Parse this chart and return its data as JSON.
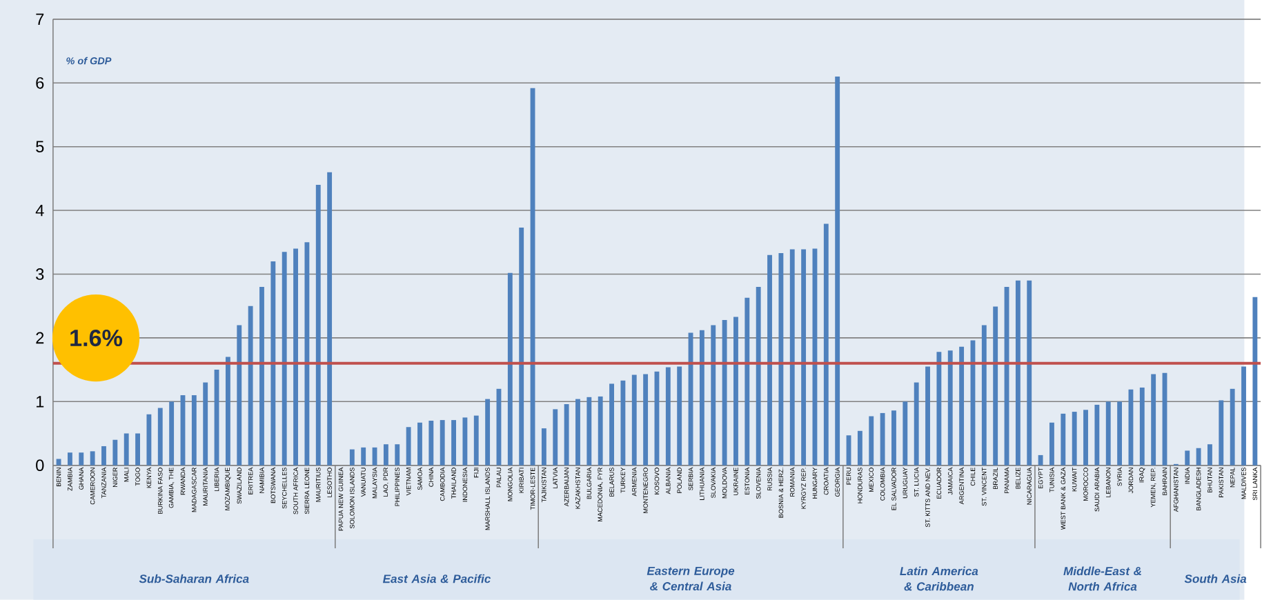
{
  "chart_data": {
    "type": "bar",
    "ylabel": "% of GDP",
    "categories": [
      "BENIN",
      "ZAMBIA",
      "GHANA",
      "CAMEROON",
      "TANZANIA",
      "NIGER",
      "MALI",
      "TOGO",
      "KENYA",
      "BURKINA FASO",
      "GAMBIA, THE",
      "RWANDA",
      "MADAGASCAR",
      "MAURITANIA",
      "LIBERIA",
      "MOZAMBIQUE",
      "SWAZILAND",
      "ERITREA",
      "NAMIBIA",
      "BOTSWANA",
      "SEYCHELLES",
      "SOUTH AFRICA",
      "SIERRA LEONE",
      "MAURITIUS",
      "LESOTHO",
      "PAPUA NEW GUINEA",
      "SOLOMON ISLANDS",
      "VANUATU",
      "MALAYSIA",
      "LAO, PDR",
      "PHILIPPINES",
      "VIETNAM",
      "SAMOA",
      "CHINA",
      "CAMBODIA",
      "THAILAND",
      "INDONESIA",
      "FIJI",
      "MARSHALL ISLANDS",
      "PALAU",
      "MONGOLIA",
      "KIRIBATI",
      "TIMOR-LESTE",
      "TAJIKISTAN",
      "LATVIA",
      "AZERBAIJAN",
      "KAZAKHSTAN",
      "BULGARIA",
      "MACEDONIA, FYR",
      "BELARUS",
      "TURKEY",
      "ARMENIA",
      "MONTENEGRO",
      "KOSOVO",
      "ALBANIA",
      "POLAND",
      "SERBIA",
      "LITHUANIA",
      "SLOVAKIA",
      "MOLDOVA",
      "UKRAINE",
      "ESTONIA",
      "SLOVENIA",
      "RUSSIA",
      "BOSNIA & HERZ.",
      "ROMANIA",
      "KYRGYZ REP.",
      "HUNGARY",
      "CROATIA",
      "GEORGIA",
      "PERU",
      "HONDURAS",
      "MEXICO",
      "COLOMBIA",
      "EL SALVADOR",
      "URUGUAY",
      "ST. LUCIA",
      "ST. KITTS AND NEV.",
      "ECUADOR",
      "JAMAICA",
      "ARGENTINA",
      "CHILE",
      "ST. VINCENT",
      "BRAZIL",
      "PANAMA",
      "BELIZE",
      "NICARAGUA",
      "EGYPT",
      "TUNISIA",
      "WEST BANK & GAZA",
      "KUWAIT",
      "MOROCCO",
      "SAUDI ARABIA",
      "LEBANON",
      "SYRIA",
      "JORDAN",
      "IRAQ",
      "YEMEN, REP.",
      "BAHRAIN",
      "AFGHANISTAN",
      "INDIA",
      "BANGLADESH",
      "BHUTAN",
      "PAKISTAN",
      "NEPAL",
      "MALDIVES",
      "SRI LANKA"
    ],
    "values": [
      0.1,
      0.2,
      0.2,
      0.22,
      0.3,
      0.4,
      0.5,
      0.5,
      0.8,
      0.9,
      1.0,
      1.1,
      1.1,
      1.3,
      1.5,
      1.7,
      2.2,
      2.5,
      2.8,
      3.2,
      3.35,
      3.4,
      3.5,
      4.4,
      4.6,
      null,
      0.25,
      0.28,
      0.28,
      0.33,
      0.33,
      0.6,
      0.67,
      0.7,
      0.71,
      0.71,
      0.75,
      0.78,
      1.04,
      1.2,
      3.02,
      3.73,
      5.92,
      0.58,
      0.88,
      0.96,
      1.04,
      1.07,
      1.08,
      1.28,
      1.33,
      1.42,
      1.43,
      1.47,
      1.54,
      1.55,
      2.08,
      2.12,
      2.2,
      2.28,
      2.33,
      2.63,
      2.8,
      3.3,
      3.33,
      3.39,
      3.39,
      3.4,
      3.79,
      6.1,
      0.47,
      0.54,
      0.77,
      0.82,
      0.86,
      1.0,
      1.3,
      1.55,
      1.78,
      1.8,
      1.86,
      1.96,
      2.2,
      2.49,
      2.8,
      2.9,
      2.9,
      0.16,
      0.67,
      0.81,
      0.84,
      0.87,
      0.95,
      1.0,
      1.0,
      1.19,
      1.22,
      1.43,
      1.45,
      0.02,
      0.23,
      0.27,
      0.33,
      1.02,
      1.2,
      1.55,
      2.64
    ],
    "color": "#4f81bd",
    "ylim": [
      0,
      7
    ],
    "yticks": [
      0,
      1,
      2,
      3,
      4,
      5,
      6,
      7
    ],
    "grid": "y",
    "ref_lines": [
      {
        "axis": "y",
        "value": 1.6,
        "label": "1.6%",
        "color": "#c0504d"
      }
    ],
    "annotations": [
      "Sub-Saharan Africa",
      "East Asia & Pacific",
      "Eastern Europe & Central Asia",
      "Latin America & Caribbean",
      "Middle-East & North Africa",
      "South Asia"
    ]
  }
}
